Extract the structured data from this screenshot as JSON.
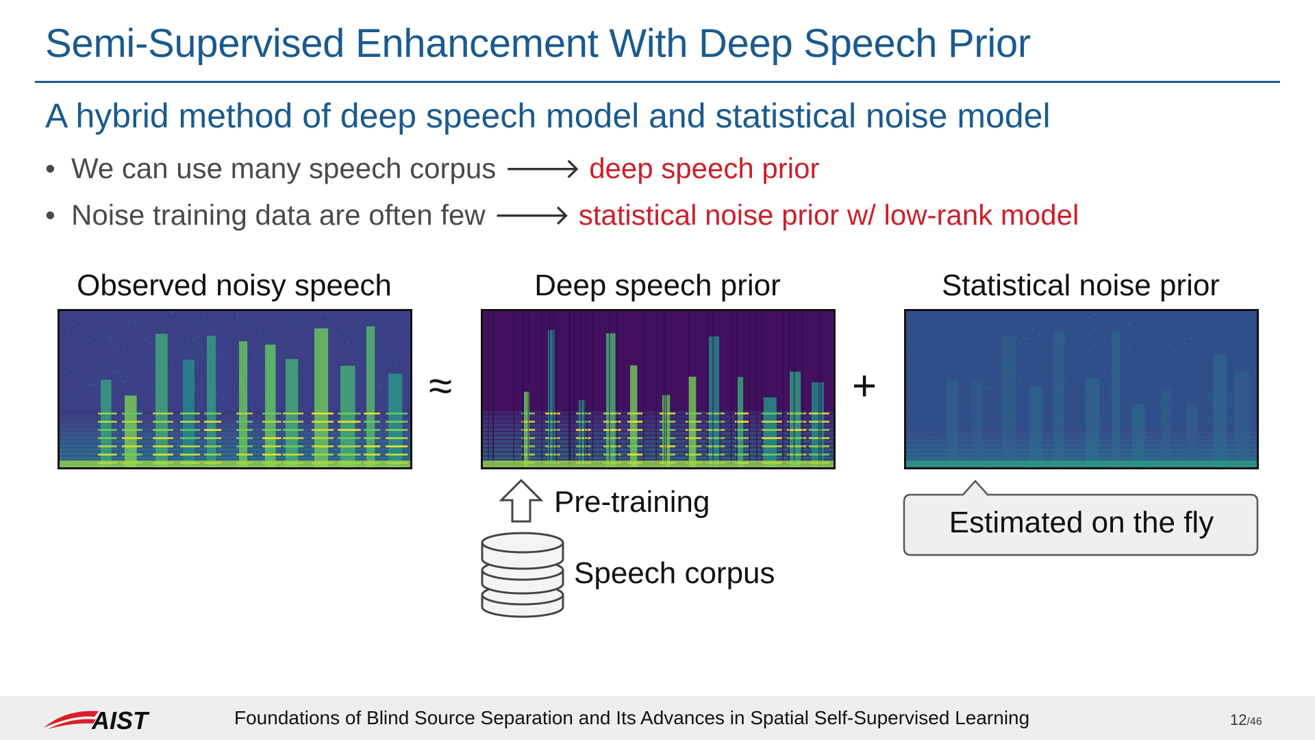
{
  "slide": {
    "title": "Semi-Supervised Enhancement With Deep Speech Prior",
    "subtitle": "A hybrid method of deep speech model and statistical noise model",
    "bullets": [
      {
        "text": "We can use many speech corpus",
        "highlight": "deep speech prior"
      },
      {
        "text": "Noise training data are often few",
        "highlight": "statistical noise prior w/ low-rank model"
      }
    ],
    "bullet_glyph": "•",
    "arrow_glyph": "🡒",
    "highlight_color": "#cc1f2a",
    "title_color": "#1a5a8e"
  },
  "figure": {
    "panels": [
      {
        "label": "Observed noisy speech"
      },
      {
        "label": "Deep speech prior"
      },
      {
        "label": "Statistical noise prior"
      }
    ],
    "approx_symbol": "≈",
    "plus_symbol": "+",
    "pretraining_label": "Pre-training",
    "corpus_label": "Speech corpus",
    "callout_label": "Estimated on the fly",
    "icons": [
      "up-arrow-outline-icon",
      "database-icon"
    ]
  },
  "footer": {
    "logo_text": "AIST",
    "title": "Foundations of Blind Source Separation and Its Advances in Spatial Self-Supervised Learning",
    "page": "12",
    "total": "/46"
  }
}
